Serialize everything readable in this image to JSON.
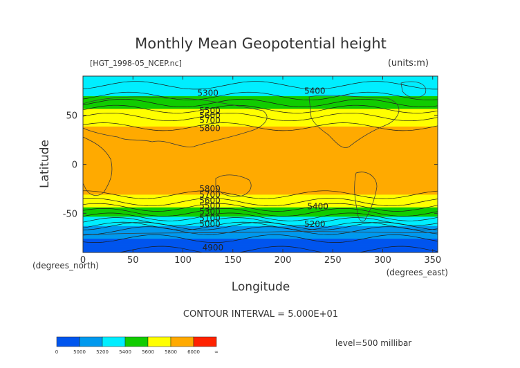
{
  "chart_data": {
    "type": "heatmap",
    "title": "Monthly Mean Geopotential height",
    "file_label": "[HGT_1998-05_NCEP.nc]",
    "units_label": "(units:m)",
    "xlabel": "Longitude",
    "ylabel": "Latitude",
    "x_unit_label": "(degrees_east)",
    "y_unit_label": "(degrees_north)",
    "xlim": [
      0,
      355
    ],
    "ylim": [
      -90,
      90
    ],
    "x_ticks": [
      0,
      50,
      100,
      150,
      200,
      250,
      300,
      350
    ],
    "y_ticks": [
      -50,
      0,
      50
    ],
    "contour_interval_text": "CONTOUR INTERVAL = 5.000E+01",
    "level_text": "level=500 millibar",
    "color_levels": [
      {
        "min": 0,
        "max": 5000,
        "color": "#0055ee"
      },
      {
        "min": 5000,
        "max": 5200,
        "color": "#0099ee"
      },
      {
        "min": 5200,
        "max": 5400,
        "color": "#00eeff"
      },
      {
        "min": 5400,
        "max": 5600,
        "color": "#11cc00"
      },
      {
        "min": 5600,
        "max": 5800,
        "color": "#ffff00"
      },
      {
        "min": 5800,
        "max": 6000,
        "color": "#ffaa00"
      },
      {
        "min": 6000,
        "max": 99999,
        "color": "#ff2200"
      }
    ],
    "colorbar_labels": [
      "0",
      "5000",
      "5200",
      "5400",
      "5600",
      "5800",
      "6000",
      "∞"
    ],
    "zonal_profile": [
      {
        "lat": 90,
        "value": 5250
      },
      {
        "lat": 75,
        "value": 5330
      },
      {
        "lat": 65,
        "value": 5460
      },
      {
        "lat": 55,
        "value": 5620
      },
      {
        "lat": 45,
        "value": 5740
      },
      {
        "lat": 35,
        "value": 5830
      },
      {
        "lat": 0,
        "value": 5880
      },
      {
        "lat": -25,
        "value": 5860
      },
      {
        "lat": -35,
        "value": 5760
      },
      {
        "lat": -42,
        "value": 5640
      },
      {
        "lat": -50,
        "value": 5480
      },
      {
        "lat": -57,
        "value": 5330
      },
      {
        "lat": -63,
        "value": 5200
      },
      {
        "lat": -70,
        "value": 5050
      },
      {
        "lat": -90,
        "value": 4880
      }
    ],
    "contour_labels": [
      {
        "text": "5300",
        "lon": 125,
        "lat": 70
      },
      {
        "text": "5400",
        "lon": 232,
        "lat": 72
      },
      {
        "text": "5500",
        "lon": 127,
        "lat": 52
      },
      {
        "text": "5600",
        "lon": 127,
        "lat": 47
      },
      {
        "text": "5700",
        "lon": 127,
        "lat": 42
      },
      {
        "text": "5800",
        "lon": 127,
        "lat": 34
      },
      {
        "text": "5800",
        "lon": 127,
        "lat": -28
      },
      {
        "text": "5700",
        "lon": 127,
        "lat": -34
      },
      {
        "text": "5600",
        "lon": 127,
        "lat": -40
      },
      {
        "text": "5500",
        "lon": 127,
        "lat": -45
      },
      {
        "text": "5400",
        "lon": 235,
        "lat": -46
      },
      {
        "text": "5300",
        "lon": 127,
        "lat": -51
      },
      {
        "text": "5200",
        "lon": 232,
        "lat": -64
      },
      {
        "text": "5100",
        "lon": 127,
        "lat": -58
      },
      {
        "text": "5000",
        "lon": 127,
        "lat": -64
      },
      {
        "text": "4900",
        "lon": 130,
        "lat": -88
      }
    ]
  }
}
